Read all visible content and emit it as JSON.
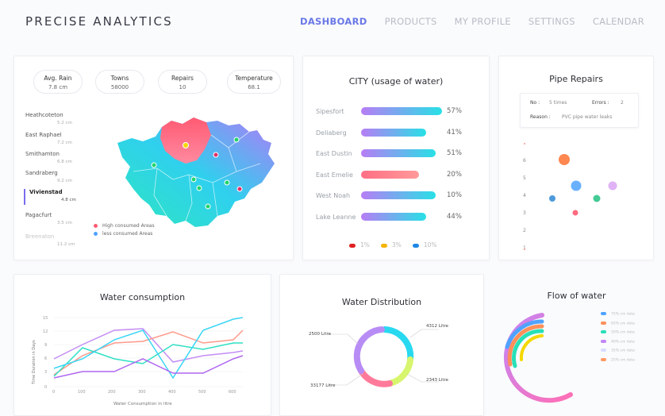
{
  "brand": "PRECISE ANALYTICS",
  "nav": [
    "DASHBOARD",
    "PRODUCTS",
    "MY PROFILE",
    "SETTINGS",
    "CALENDAR"
  ],
  "stats": [
    {
      "label": "Avg. Rain",
      "value": "7.8 cm"
    },
    {
      "label": "Towns",
      "value": "58000"
    },
    {
      "label": "Repairs",
      "value": "10"
    },
    {
      "label": "Temperature",
      "value": "68.1"
    }
  ],
  "cities": [
    {
      "name": "Heathcoteton",
      "value": "5.2 cm"
    },
    {
      "name": "East Raphael",
      "value": "7.2 cm"
    },
    {
      "name": "Smithamton",
      "value": "6.8 cm"
    },
    {
      "name": "Sandraberg",
      "value": "9.2 cm"
    },
    {
      "name": "Vivienstad",
      "value": "4.8 cm"
    },
    {
      "name": "Pagacfurt",
      "value": "3.5 cm"
    },
    {
      "name": "Breenaton",
      "value": "11.2 cm"
    }
  ],
  "map_legend": [
    "High consumed Areas",
    "less consumed Areas"
  ],
  "city_usage": {
    "title": "CITY (usage of water)",
    "rows": [
      {
        "name": "Sipesfort",
        "pct": "57%",
        "fill": 1.0,
        "from": "#b77df5",
        "to": "#28e0e6"
      },
      {
        "name": "Deliaberg",
        "pct": "41%",
        "fill": 0.8,
        "from": "#b77df5",
        "to": "#28e0e6"
      },
      {
        "name": "East Dustin",
        "pct": "51%",
        "fill": 0.92,
        "from": "#b77df5",
        "to": "#28e0e6"
      },
      {
        "name": "East Emelie",
        "pct": "20%",
        "fill": 0.72,
        "from": "#ff6f84",
        "to": "#ff9a9a"
      },
      {
        "name": "West Noah",
        "pct": "10%",
        "fill": 0.92,
        "from": "#b77df5",
        "to": "#28e0e6"
      },
      {
        "name": "Lake Leanne",
        "pct": "44%",
        "fill": 0.8,
        "from": "#b77df5",
        "to": "#28e0e6"
      }
    ],
    "legend": [
      {
        "label": "1%",
        "color": "#e02020"
      },
      {
        "label": "3%",
        "color": "#f5b400"
      },
      {
        "label": "10%",
        "color": "#1e88e5"
      }
    ]
  },
  "pipe_repairs": {
    "title": "Pipe Repairs",
    "no_label": "No :",
    "no_value": "5 times",
    "errors_label": "Errors :",
    "errors_value": "2",
    "reason_label": "Reason :",
    "reason_value": "PVC pipe water leaks",
    "y_ticks": [
      "6",
      "5",
      "4",
      "3",
      "2",
      "1"
    ]
  },
  "water_consumption": {
    "title": "Water consumption",
    "xlabel": "Water Consumption in litre",
    "ylabel": "Time Duration in Days",
    "x_ticks": [
      "0",
      "100",
      "200",
      "300",
      "400",
      "500",
      "600"
    ],
    "y_ticks": [
      "15",
      "12",
      "9",
      "6",
      "3",
      "0"
    ]
  },
  "water_distribution": {
    "title": "Water Distribution",
    "labels": [
      "2500 Litre",
      "4312 Litre",
      "33177 Litre",
      "2343 Litre"
    ]
  },
  "flow": {
    "title": "Flow of water",
    "legend": [
      {
        "label": "75% cm data",
        "color": "#4fa3ff"
      },
      {
        "label": "65% cm data",
        "color": "#ff8f5a"
      },
      {
        "label": "50% cm data",
        "color": "#28e0b8"
      },
      {
        "label": "40% cm data",
        "color": "#c386f5"
      },
      {
        "label": "35% cm data",
        "color": "#d9dcff"
      },
      {
        "label": "25% cm data",
        "color": "#ff9a62"
      }
    ]
  }
}
